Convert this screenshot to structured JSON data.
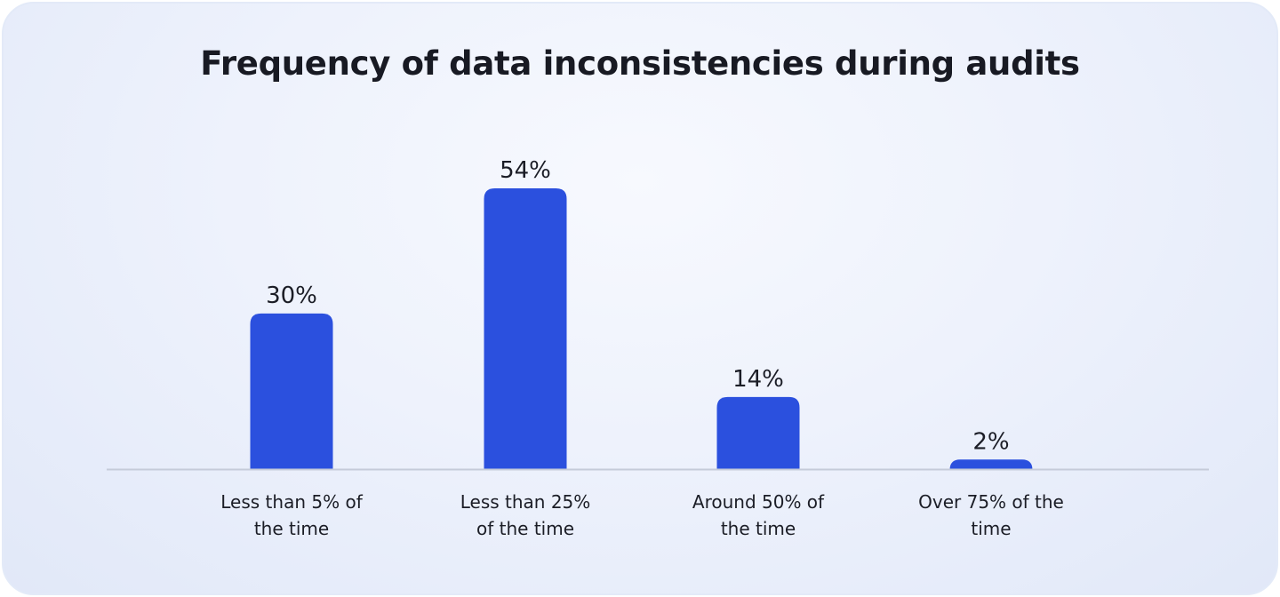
{
  "chart_data": {
    "type": "bar",
    "title": "Frequency of data inconsistencies during audits",
    "categories": [
      [
        "Less than 5% of",
        "the time"
      ],
      [
        "Less than 25%",
        "of the time"
      ],
      [
        "Around 50% of",
        "the time"
      ],
      [
        "Over 75% of the",
        "time"
      ]
    ],
    "values": [
      30,
      54,
      14,
      2
    ],
    "value_labels": [
      "30%",
      "54%",
      "14%",
      "2%"
    ],
    "ylim": [
      0,
      54
    ],
    "grid": false,
    "bar_color": "#2b50de",
    "baseline_color": "#c5cbd9"
  }
}
